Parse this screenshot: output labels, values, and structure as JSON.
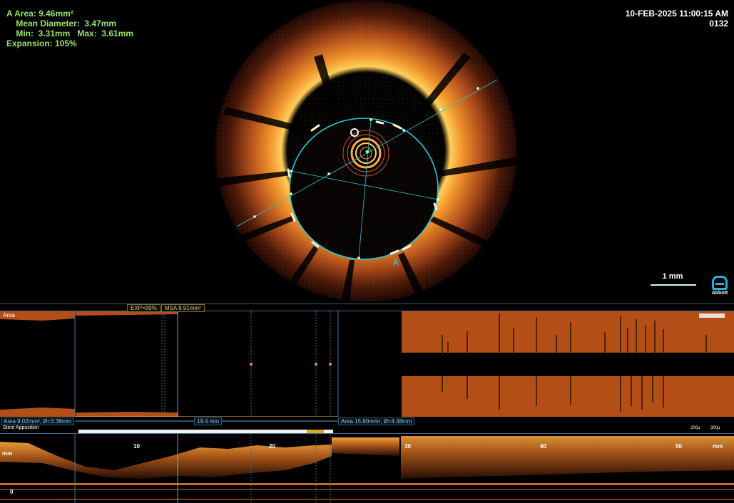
{
  "measurements": {
    "area": "A Area: 9.46mm²",
    "mean_diameter": "    Mean Diameter:  3.47mm",
    "min_max": "    Min:  3.31mm   Max:  3.61mm",
    "expansion": "Expansion: 105%"
  },
  "header": {
    "datetime": "10-FEB-2025 11:00:15 AM",
    "frame": "0132"
  },
  "frame_label": "A",
  "scale_bar": {
    "label": "1 mm"
  },
  "logo": {
    "name": "Abbott",
    "color": "#29aee0"
  },
  "area_panel": {
    "label": "Area",
    "exp_label": "EXP=99%",
    "msa_label": "MSA 8.91mm²",
    "distal_ref": "Area 9.02mm², Ø=3.38mm",
    "length": "19.4 mm",
    "proximal_ref": "Area 15.80mm², Ø=4.48mm",
    "legend": "— 99%"
  },
  "apposition": {
    "label": "Stent Apposition",
    "legend": [
      "200µ",
      "300µ"
    ]
  },
  "longitudinal": {
    "unit": "mm",
    "ticks": [
      "10",
      "20",
      "30",
      "40",
      "50"
    ],
    "zero": "0"
  },
  "colors": {
    "tissue": "#e6861e",
    "lumen_contour": "#27c7d6",
    "measure_text": "#9be26a",
    "area_fill": "#b34e16",
    "reference_line": "#3d7a9c"
  }
}
